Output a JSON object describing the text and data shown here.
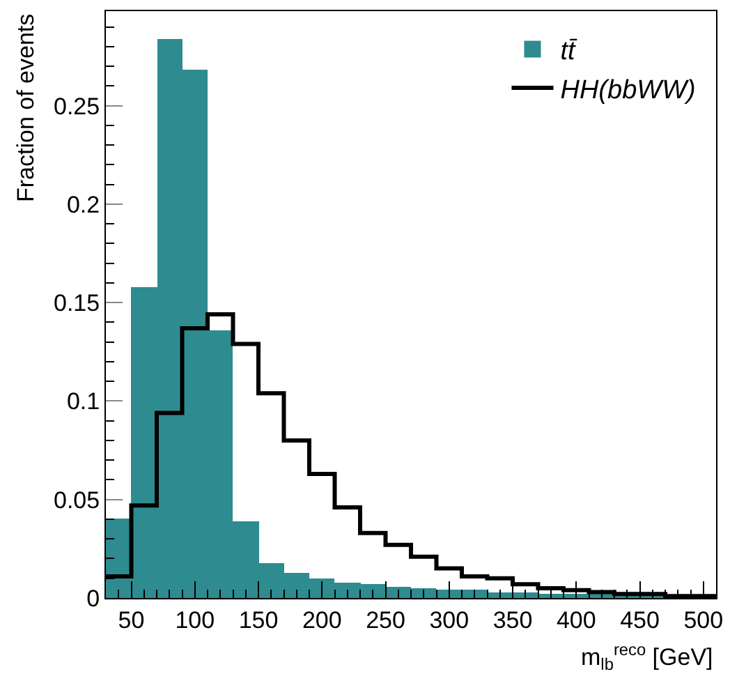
{
  "chart_data": {
    "type": "histogram",
    "xlabel": "m$_{lb}$$^{reco}$ [GeV]",
    "ylabel": "Fraction of events",
    "bins": [
      30,
      50,
      70,
      90,
      110,
      130,
      150,
      170,
      190,
      210,
      230,
      250,
      270,
      290,
      310,
      330,
      350,
      370,
      390,
      410,
      430,
      450,
      470,
      490,
      510
    ],
    "series": [
      {
        "name": "tt̄",
        "color": "#2e8b8f",
        "values": [
          0.04,
          0.158,
          0.284,
          0.268,
          0.136,
          0.039,
          0.018,
          0.013,
          0.01,
          0.008,
          0.007,
          0.006,
          0.005,
          0.004,
          0.004,
          0.003,
          0.003,
          0.002,
          0.002,
          0.002,
          0.001,
          0.001,
          0.0,
          0.0
        ]
      },
      {
        "name": "HH(bbWW)",
        "type": "step",
        "color": "#000000",
        "x": [
          30,
          50,
          70,
          90,
          110,
          130,
          150,
          170,
          190,
          210,
          230,
          250,
          270,
          290,
          310,
          330,
          350,
          370,
          390,
          410,
          430,
          450,
          470,
          490,
          510
        ],
        "values": [
          0.011,
          0.047,
          0.094,
          0.137,
          0.144,
          0.129,
          0.104,
          0.08,
          0.063,
          0.046,
          0.033,
          0.027,
          0.021,
          0.015,
          0.011,
          0.01,
          0.007,
          0.005,
          0.004,
          0.003,
          0.002,
          0.002,
          0.001,
          0.001,
          0.001
        ]
      }
    ],
    "xlim": [
      30,
      510
    ],
    "xticks": [
      50,
      100,
      150,
      200,
      250,
      300,
      350,
      400,
      450,
      500
    ],
    "ylim": [
      0,
      0.298
    ],
    "yticks": [
      0,
      0.05,
      0.1,
      0.15,
      0.2,
      0.25
    ],
    "grid": false,
    "legend": "top right"
  }
}
